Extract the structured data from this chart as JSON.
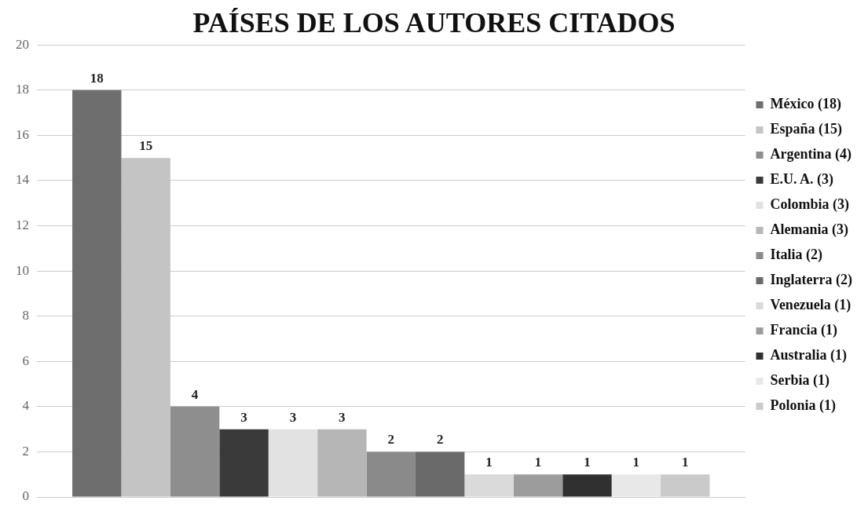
{
  "chart_data": {
    "type": "bar",
    "title": "PAÍSES DE LOS AUTORES CITADOS",
    "categories": [
      null
    ],
    "series": [
      {
        "name": "México (18)",
        "color": "#6e6e6e",
        "values": [
          18
        ]
      },
      {
        "name": "España (15)",
        "color": "#c4c4c4",
        "values": [
          15
        ]
      },
      {
        "name": "Argentina (4)",
        "color": "#8e8e8e",
        "values": [
          4
        ]
      },
      {
        "name": "E.U. A. (3)",
        "color": "#3a3a3a",
        "values": [
          3
        ]
      },
      {
        "name": "Colombia (3)",
        "color": "#e2e2e2",
        "values": [
          3
        ]
      },
      {
        "name": "Alemania (3)",
        "color": "#b6b6b6",
        "values": [
          3
        ]
      },
      {
        "name": "Italia (2)",
        "color": "#8a8a8a",
        "values": [
          2
        ]
      },
      {
        "name": "Inglaterra (2)",
        "color": "#6a6a6a",
        "values": [
          2
        ]
      },
      {
        "name": "Venezuela (1)",
        "color": "#dadada",
        "values": [
          1
        ]
      },
      {
        "name": "Francia (1)",
        "color": "#9c9c9c",
        "values": [
          1
        ]
      },
      {
        "name": "Australia (1)",
        "color": "#303030",
        "values": [
          1
        ]
      },
      {
        "name": "Serbia (1)",
        "color": "#e8e8e8",
        "values": [
          1
        ]
      },
      {
        "name": "Polonia (1)",
        "color": "#cacaca",
        "values": [
          1
        ]
      }
    ],
    "ylim": [
      0,
      20
    ],
    "yticks": [
      0,
      2,
      4,
      6,
      8,
      10,
      12,
      14,
      16,
      18,
      20
    ],
    "grid": "y",
    "legend": "right",
    "data_labels": true
  }
}
